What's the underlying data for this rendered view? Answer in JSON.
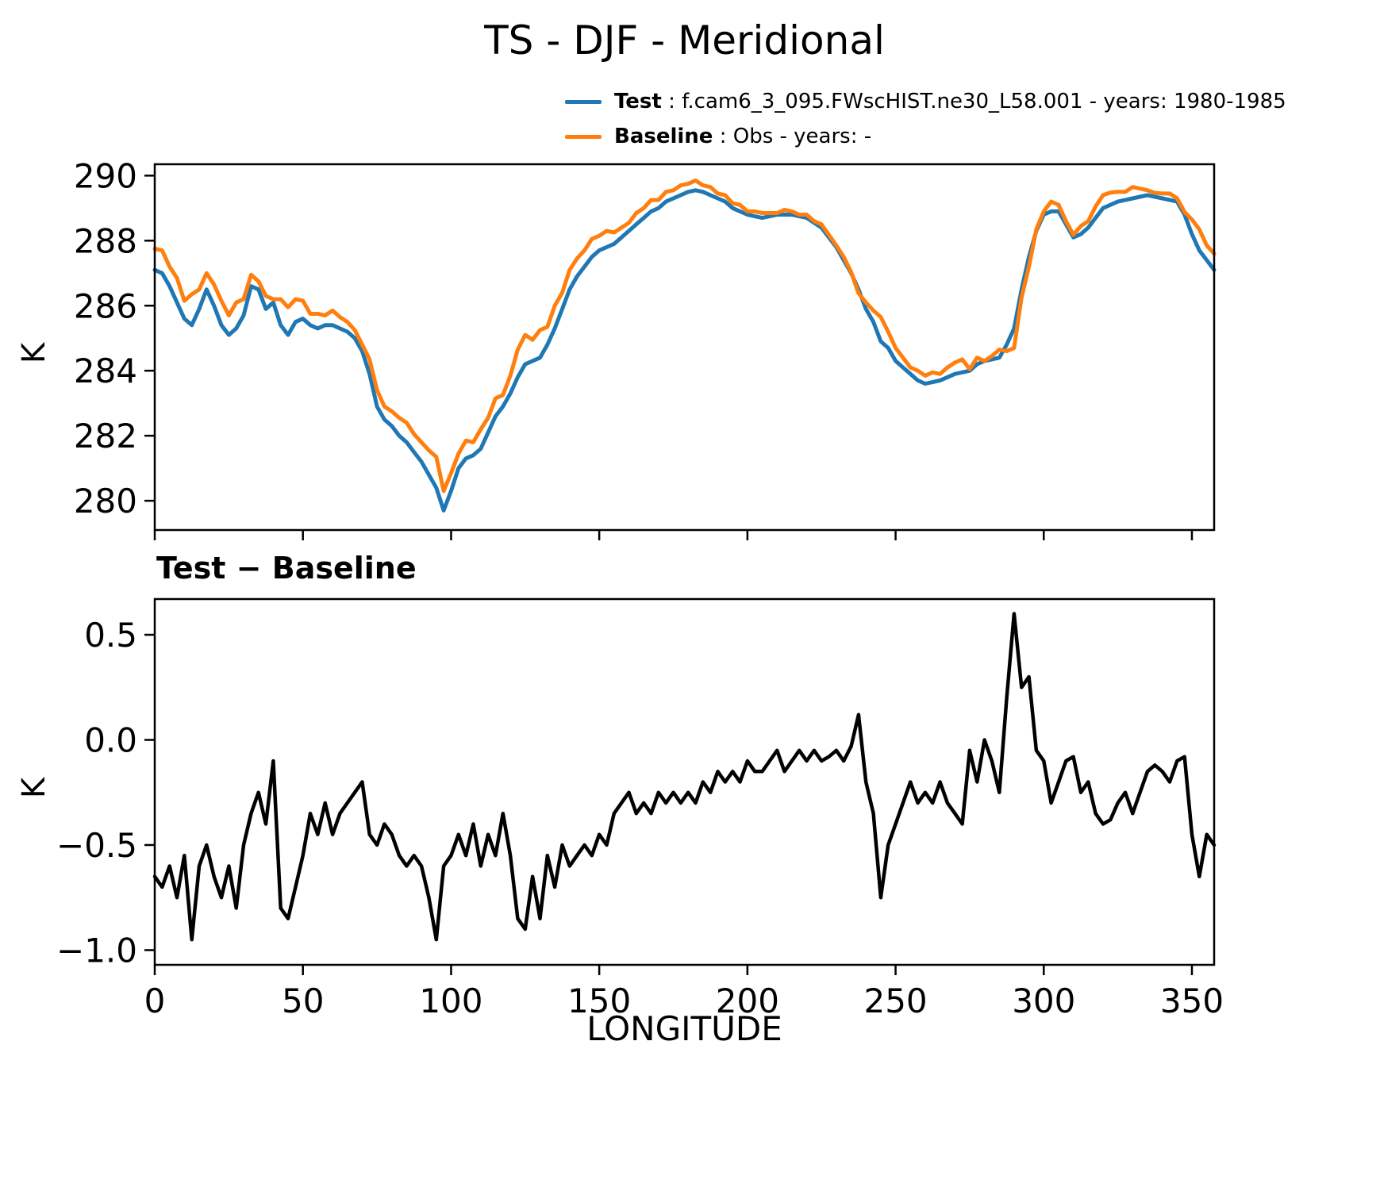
{
  "title": "TS - DJF - Meridional",
  "legend": {
    "test_label": "Test",
    "test_text": " : f.cam6_3_095.FWscHIST.ne30_L58.001 - years: 1980-1985",
    "baseline_label": "Baseline",
    "baseline_text": " : Obs - years: -"
  },
  "colors": {
    "test": "#1f77b4",
    "baseline": "#ff7f0e",
    "diff": "#000000"
  },
  "chart_data": [
    {
      "type": "line",
      "title": "",
      "ylabel": "K",
      "xlabel": "",
      "xlim": [
        0,
        357.5
      ],
      "ylim": [
        279.1,
        290.35
      ],
      "x_start": 0,
      "x_step": 2.5,
      "xticks": [
        0,
        50,
        100,
        150,
        200,
        250,
        300,
        350
      ],
      "yticks": [
        280,
        282,
        284,
        286,
        288,
        290
      ],
      "ytick_labels": [
        "280",
        "282",
        "284",
        "286",
        "288",
        "290"
      ],
      "legend_position": "top-right-above",
      "grid": false,
      "series": [
        {
          "name": "Test",
          "key": "test",
          "color": "#1f77b4",
          "values": [
            287.1,
            287.0,
            286.6,
            286.1,
            285.6,
            285.4,
            285.9,
            286.5,
            286.0,
            285.4,
            285.1,
            285.3,
            285.7,
            286.6,
            286.5,
            285.9,
            286.1,
            285.4,
            285.1,
            285.5,
            285.6,
            285.4,
            285.3,
            285.4,
            285.4,
            285.3,
            285.2,
            285.0,
            284.6,
            283.9,
            282.9,
            282.5,
            282.3,
            282.0,
            281.8,
            281.5,
            281.2,
            280.8,
            280.4,
            279.7,
            280.3,
            281.0,
            281.3,
            281.4,
            281.6,
            282.1,
            282.6,
            282.9,
            283.3,
            283.8,
            284.2,
            284.3,
            284.4,
            284.8,
            285.3,
            285.9,
            286.5,
            286.9,
            287.2,
            287.5,
            287.7,
            287.8,
            287.9,
            288.1,
            288.3,
            288.5,
            288.7,
            288.9,
            289.0,
            289.2,
            289.3,
            289.4,
            289.5,
            289.55,
            289.5,
            289.4,
            289.3,
            289.2,
            289.0,
            288.9,
            288.8,
            288.75,
            288.7,
            288.75,
            288.8,
            288.8,
            288.8,
            288.75,
            288.7,
            288.55,
            288.4,
            288.1,
            287.8,
            287.4,
            287.0,
            286.5,
            285.9,
            285.5,
            284.9,
            284.7,
            284.3,
            284.1,
            283.9,
            283.7,
            283.6,
            283.65,
            283.7,
            283.8,
            283.9,
            283.95,
            284.0,
            284.2,
            284.3,
            284.35,
            284.4,
            284.8,
            285.3,
            286.5,
            287.5,
            288.3,
            288.8,
            288.9,
            288.9,
            288.5,
            288.1,
            288.2,
            288.4,
            288.7,
            289.0,
            289.1,
            289.2,
            289.25,
            289.3,
            289.35,
            289.4,
            289.35,
            289.3,
            289.25,
            289.2,
            288.8,
            288.2,
            287.7,
            287.4,
            287.1
          ]
        },
        {
          "name": "Baseline",
          "key": "baseline",
          "color": "#ff7f0e",
          "values": [
            287.75,
            287.7,
            287.2,
            286.85,
            286.15,
            286.35,
            286.5,
            287.0,
            286.65,
            286.15,
            285.7,
            286.1,
            286.2,
            286.95,
            286.75,
            286.3,
            286.2,
            286.2,
            285.95,
            286.2,
            286.15,
            285.75,
            285.75,
            285.7,
            285.85,
            285.65,
            285.5,
            285.25,
            284.8,
            284.35,
            283.4,
            282.9,
            282.75,
            282.55,
            282.4,
            282.05,
            281.8,
            281.55,
            281.35,
            280.3,
            280.85,
            281.45,
            281.85,
            281.8,
            282.2,
            282.55,
            283.15,
            283.25,
            283.85,
            284.65,
            285.1,
            284.95,
            285.25,
            285.35,
            286.0,
            286.4,
            287.1,
            287.45,
            287.7,
            288.05,
            288.15,
            288.3,
            288.25,
            288.4,
            288.55,
            288.85,
            289.0,
            289.25,
            289.25,
            289.5,
            289.55,
            289.7,
            289.75,
            289.85,
            289.7,
            289.65,
            289.45,
            289.4,
            289.15,
            289.1,
            288.9,
            288.9,
            288.85,
            288.85,
            288.85,
            288.95,
            288.9,
            288.8,
            288.8,
            288.6,
            288.5,
            288.18,
            287.85,
            287.5,
            287.03,
            286.38,
            286.1,
            285.85,
            285.65,
            285.2,
            284.7,
            284.4,
            284.1,
            284.0,
            283.85,
            283.95,
            283.9,
            284.1,
            284.25,
            284.35,
            284.05,
            284.4,
            284.3,
            284.45,
            284.65,
            284.6,
            284.7,
            286.25,
            287.2,
            288.35,
            288.9,
            289.2,
            289.1,
            288.6,
            288.18,
            288.45,
            288.6,
            289.05,
            289.4,
            289.48,
            289.5,
            289.5,
            289.65,
            289.6,
            289.55,
            289.47,
            289.45,
            289.45,
            289.3,
            288.88,
            288.65,
            288.35,
            287.85,
            287.6
          ]
        }
      ]
    },
    {
      "type": "line",
      "title": "Test − Baseline",
      "ylabel": "K",
      "xlabel": "LONGITUDE",
      "xlim": [
        0,
        357.5
      ],
      "ylim": [
        -1.07,
        0.67
      ],
      "x_start": 0,
      "x_step": 2.5,
      "xticks": [
        0,
        50,
        100,
        150,
        200,
        250,
        300,
        350
      ],
      "xtick_labels": [
        "0",
        "50",
        "100",
        "150",
        "200",
        "250",
        "300",
        "350"
      ],
      "yticks": [
        0.5,
        0.0,
        -0.5,
        -1.0
      ],
      "ytick_labels": [
        "0.5",
        "0.0",
        "−0.5",
        "−1.0"
      ],
      "grid": false,
      "series": [
        {
          "name": "Test − Baseline",
          "key": "diff",
          "color": "#000000",
          "values": [
            -0.65,
            -0.7,
            -0.6,
            -0.75,
            -0.55,
            -0.95,
            -0.6,
            -0.5,
            -0.65,
            -0.75,
            -0.6,
            -0.8,
            -0.5,
            -0.35,
            -0.25,
            -0.4,
            -0.1,
            -0.8,
            -0.85,
            -0.7,
            -0.55,
            -0.35,
            -0.45,
            -0.3,
            -0.45,
            -0.35,
            -0.3,
            -0.25,
            -0.2,
            -0.45,
            -0.5,
            -0.4,
            -0.45,
            -0.55,
            -0.6,
            -0.55,
            -0.6,
            -0.75,
            -0.95,
            -0.6,
            -0.55,
            -0.45,
            -0.55,
            -0.4,
            -0.6,
            -0.45,
            -0.55,
            -0.35,
            -0.55,
            -0.85,
            -0.9,
            -0.65,
            -0.85,
            -0.55,
            -0.7,
            -0.5,
            -0.6,
            -0.55,
            -0.5,
            -0.55,
            -0.45,
            -0.5,
            -0.35,
            -0.3,
            -0.25,
            -0.35,
            -0.3,
            -0.35,
            -0.25,
            -0.3,
            -0.25,
            -0.3,
            -0.25,
            -0.3,
            -0.2,
            -0.25,
            -0.15,
            -0.2,
            -0.15,
            -0.2,
            -0.1,
            -0.15,
            -0.15,
            -0.1,
            -0.05,
            -0.15,
            -0.1,
            -0.05,
            -0.1,
            -0.05,
            -0.1,
            -0.08,
            -0.05,
            -0.1,
            -0.03,
            0.12,
            -0.2,
            -0.35,
            -0.75,
            -0.5,
            -0.4,
            -0.3,
            -0.2,
            -0.3,
            -0.25,
            -0.3,
            -0.2,
            -0.3,
            -0.35,
            -0.4,
            -0.05,
            -0.2,
            0.0,
            -0.1,
            -0.25,
            0.2,
            0.6,
            0.25,
            0.3,
            -0.05,
            -0.1,
            -0.3,
            -0.2,
            -0.1,
            -0.08,
            -0.25,
            -0.2,
            -0.35,
            -0.4,
            -0.38,
            -0.3,
            -0.25,
            -0.35,
            -0.25,
            -0.15,
            -0.12,
            -0.15,
            -0.2,
            -0.1,
            -0.08,
            -0.45,
            -0.65,
            -0.45,
            -0.5
          ]
        }
      ]
    }
  ]
}
